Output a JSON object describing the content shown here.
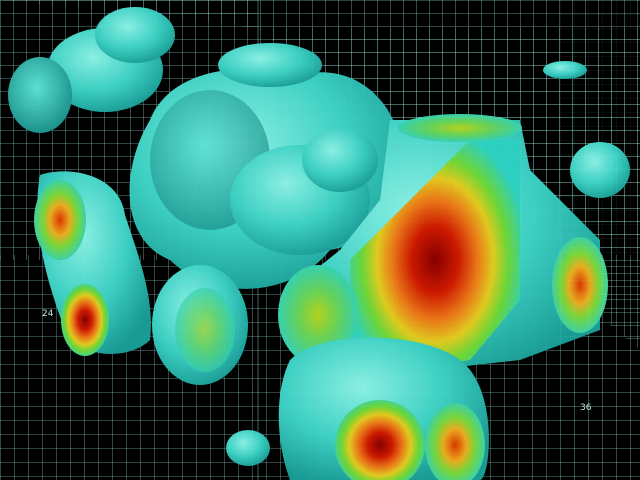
{
  "scene": {
    "description_name": "3d-volume-isosurface-render",
    "colors": {
      "background": "#000000",
      "grid": "#9ff5e4",
      "surface_low": "#2fd6c8",
      "surface_mid": "#7ddc3a",
      "surface_high": "#f07a18",
      "surface_peak": "#a40000"
    },
    "axis_labels": {
      "left": "24",
      "right": "36"
    }
  }
}
